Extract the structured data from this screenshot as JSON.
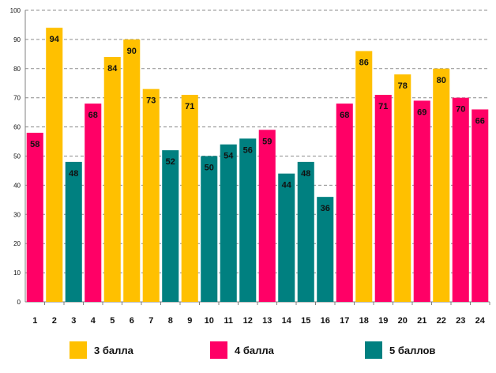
{
  "colors": {
    "3": "#FFC000",
    "4": "#FF0066",
    "5": "#008080",
    "grid": "#8c8c8c",
    "axis": "#808080",
    "text": "#111111"
  },
  "chart_data": {
    "type": "bar",
    "title": "",
    "xlabel": "",
    "ylabel": "",
    "ylim": [
      0,
      100
    ],
    "yticks": [
      0,
      10,
      20,
      30,
      40,
      50,
      60,
      70,
      80,
      90,
      100
    ],
    "grid": true,
    "categories": [
      "1",
      "2",
      "3",
      "4",
      "5",
      "6",
      "7",
      "8",
      "9",
      "10",
      "11",
      "12",
      "13",
      "14",
      "15",
      "16",
      "17",
      "18",
      "19",
      "20",
      "21",
      "22",
      "23",
      "24"
    ],
    "values": [
      58,
      94,
      48,
      68,
      84,
      90,
      73,
      52,
      71,
      50,
      54,
      56,
      59,
      44,
      48,
      36,
      68,
      86,
      71,
      78,
      69,
      80,
      70,
      66
    ],
    "groups": [
      "4",
      "3",
      "5",
      "4",
      "3",
      "3",
      "3",
      "5",
      "3",
      "5",
      "5",
      "5",
      "4",
      "5",
      "5",
      "5",
      "4",
      "3",
      "4",
      "3",
      "4",
      "3",
      "4",
      "4"
    ],
    "legend": [
      {
        "key": "3",
        "label": "3 балла"
      },
      {
        "key": "4",
        "label": "4 балла"
      },
      {
        "key": "5",
        "label": "5 баллов"
      }
    ],
    "legend_position": "bottom"
  }
}
